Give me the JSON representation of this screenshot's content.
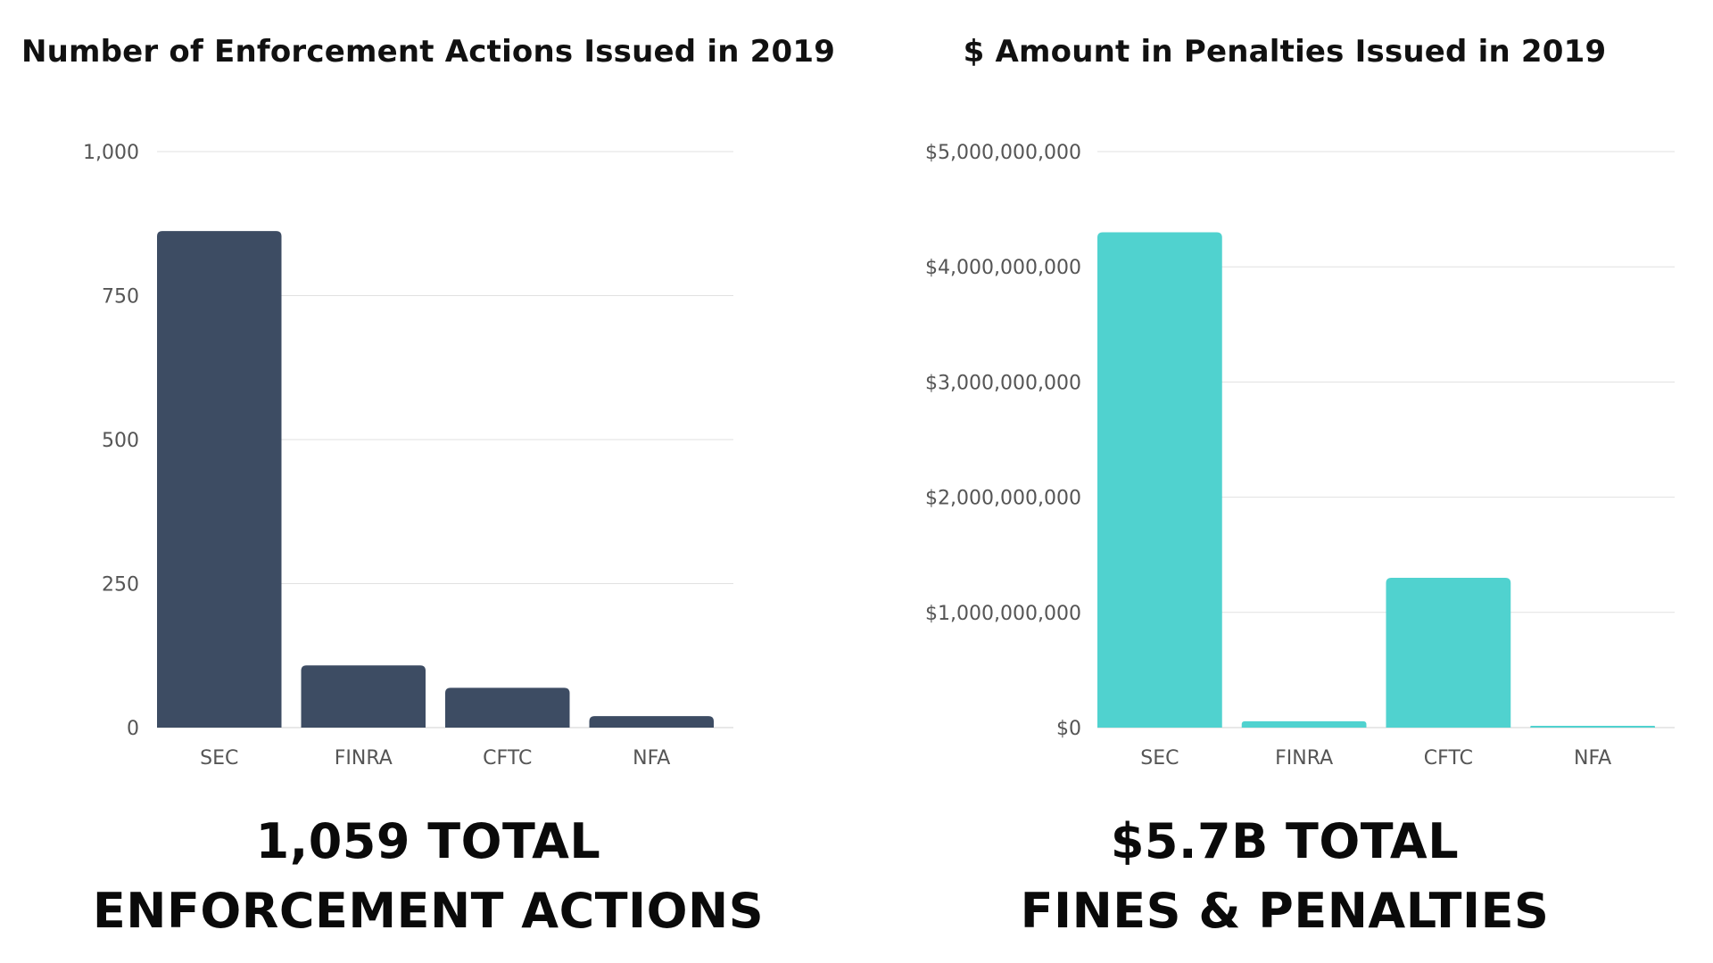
{
  "captions": {
    "left_line1": "1,059 TOTAL",
    "left_line2": "ENFORCEMENT ACTIONS",
    "right_line1": "$5.7B TOTAL",
    "right_line2": "FINES & PENALTIES"
  },
  "chart_data": [
    {
      "type": "bar",
      "title": "Number of Enforcement Actions Issued in 2019",
      "categories": [
        "SEC",
        "FINRA",
        "CFTC",
        "NFA"
      ],
      "values": [
        862,
        108,
        69,
        20
      ],
      "ylim": [
        0,
        1000
      ],
      "yticks": [
        0,
        250,
        500,
        750,
        1000
      ],
      "ytick_labels": [
        "0",
        "250",
        "500",
        "750",
        "1,000"
      ],
      "xlabel": "",
      "ylabel": "",
      "grid": true,
      "legend": "none",
      "bar_color": "#3d4c63"
    },
    {
      "type": "bar",
      "title": "$ Amount in Penalties Issued in 2019",
      "categories": [
        "SEC",
        "FINRA",
        "CFTC",
        "NFA"
      ],
      "values": [
        4300000000,
        55000000,
        1300000000,
        5000000
      ],
      "ylim": [
        0,
        5000000000
      ],
      "yticks": [
        0,
        1000000000,
        2000000000,
        3000000000,
        4000000000,
        5000000000
      ],
      "ytick_labels": [
        "$0",
        "$1,000,000,000",
        "$2,000,000,000",
        "$3,000,000,000",
        "$4,000,000,000",
        "$5,000,000,000"
      ],
      "xlabel": "",
      "ylabel": "",
      "grid": true,
      "legend": "none",
      "bar_color": "#50d2cf"
    }
  ]
}
